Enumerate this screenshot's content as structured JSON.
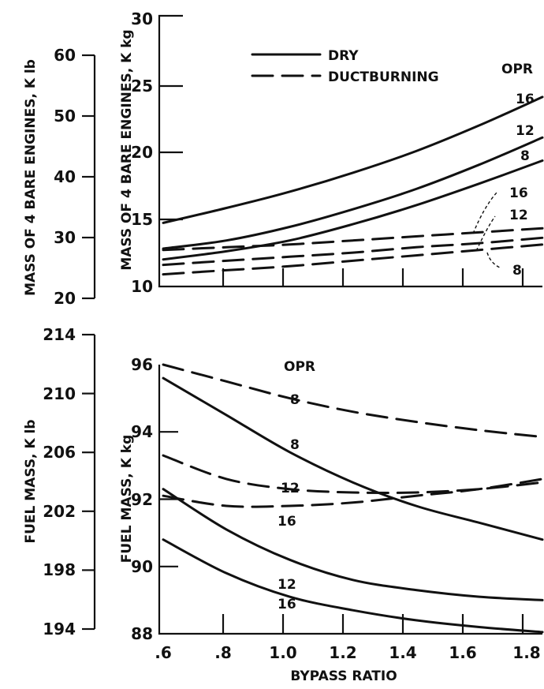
{
  "chart_data": [
    {
      "type": "line",
      "ylabel": "MASS OF 4 BARE ENGINES, K kg",
      "ylabel_secondary": "MASS OF 4 BARE ENGINES, K lb",
      "xlim": [
        0.6,
        1.8
      ],
      "ylim": [
        10,
        30
      ],
      "ylim_secondary": [
        20,
        60
      ],
      "yticks": [
        "10",
        "15",
        "20",
        "25",
        "30"
      ],
      "yticks_secondary": [
        "20",
        "30",
        "40",
        "50",
        "60"
      ],
      "legend": {
        "dry": "DRY",
        "duct": "DUCTBURNING",
        "placement": "top-center"
      },
      "curve_label_title": "OPR",
      "series": [
        {
          "name": "16",
          "style": "solid",
          "x": [
            0.6,
            0.8,
            1.0,
            1.2,
            1.4,
            1.6,
            1.8
          ],
          "y": [
            14.7,
            15.8,
            17.0,
            18.4,
            20.0,
            21.9,
            24.0
          ]
        },
        {
          "name": "12",
          "style": "solid",
          "x": [
            0.6,
            0.8,
            1.0,
            1.2,
            1.4,
            1.6,
            1.8
          ],
          "y": [
            12.8,
            13.4,
            14.4,
            15.7,
            17.2,
            19.0,
            21.0
          ]
        },
        {
          "name": "8",
          "style": "solid",
          "x": [
            0.6,
            0.8,
            1.0,
            1.2,
            1.4,
            1.6,
            1.8
          ],
          "y": [
            12.0,
            12.6,
            13.4,
            14.6,
            16.0,
            17.6,
            19.3
          ]
        },
        {
          "name": "16",
          "style": "dashed",
          "x": [
            0.6,
            0.8,
            1.0,
            1.2,
            1.4,
            1.6,
            1.8
          ],
          "y": [
            12.7,
            12.9,
            13.1,
            13.4,
            13.7,
            14.0,
            14.3
          ]
        },
        {
          "name": "12",
          "style": "dashed",
          "x": [
            0.6,
            0.8,
            1.0,
            1.2,
            1.4,
            1.6,
            1.8
          ],
          "y": [
            11.6,
            11.9,
            12.2,
            12.5,
            12.9,
            13.2,
            13.6
          ]
        },
        {
          "name": "8",
          "style": "dashed",
          "x": [
            0.6,
            0.8,
            1.0,
            1.2,
            1.4,
            1.6,
            1.8
          ],
          "y": [
            10.9,
            11.2,
            11.5,
            11.9,
            12.3,
            12.7,
            13.1
          ]
        }
      ]
    },
    {
      "type": "line",
      "xlabel": "BYPASS RATIO",
      "ylabel": "FUEL MASS, K kg",
      "ylabel_secondary": "FUEL MASS, K lb",
      "xlim": [
        0.6,
        1.8
      ],
      "ylim": [
        88,
        96
      ],
      "ylim_secondary": [
        194,
        214
      ],
      "xticks": [
        ".6",
        ".8",
        "1.0",
        "1.2",
        "1.4",
        "1.6",
        "1.8"
      ],
      "yticks": [
        "88",
        "90",
        "92",
        "94",
        "96"
      ],
      "yticks_secondary": [
        "194",
        "198",
        "202",
        "206",
        "210",
        "214"
      ],
      "curve_label_title": "OPR",
      "series": [
        {
          "name": "8",
          "style": "dashed",
          "x": [
            0.6,
            0.8,
            1.0,
            1.2,
            1.4,
            1.6,
            1.8
          ],
          "y": [
            96.0,
            95.5,
            95.0,
            94.6,
            94.3,
            94.05,
            93.85
          ]
        },
        {
          "name": "12",
          "style": "dashed",
          "x": [
            0.6,
            0.8,
            1.0,
            1.2,
            1.4,
            1.6,
            1.8
          ],
          "y": [
            93.3,
            92.6,
            92.3,
            92.2,
            92.2,
            92.3,
            92.5
          ]
        },
        {
          "name": "16",
          "style": "dashed",
          "x": [
            0.6,
            0.8,
            1.0,
            1.2,
            1.4,
            1.6,
            1.8
          ],
          "y": [
            92.1,
            91.8,
            91.8,
            91.9,
            92.1,
            92.3,
            92.6
          ]
        },
        {
          "name": "8",
          "style": "solid",
          "x": [
            0.6,
            0.8,
            1.0,
            1.2,
            1.4,
            1.6,
            1.8
          ],
          "y": [
            95.6,
            94.5,
            93.4,
            92.5,
            91.8,
            91.3,
            90.8
          ]
        },
        {
          "name": "12",
          "style": "solid",
          "x": [
            0.6,
            0.8,
            1.0,
            1.2,
            1.4,
            1.6,
            1.8
          ],
          "y": [
            92.3,
            91.1,
            90.2,
            89.6,
            89.3,
            89.1,
            89.0
          ]
        },
        {
          "name": "16",
          "style": "solid",
          "x": [
            0.6,
            0.8,
            1.0,
            1.2,
            1.4,
            1.6,
            1.8
          ],
          "y": [
            90.8,
            89.8,
            89.1,
            88.7,
            88.4,
            88.2,
            88.05
          ]
        }
      ]
    }
  ]
}
